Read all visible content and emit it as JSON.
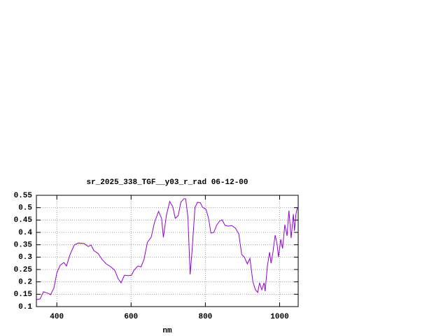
{
  "chart_data": {
    "type": "line",
    "title": "sr_2025_338_TGF__y03_r_rad 06-12-00",
    "x_label": "nm",
    "color": "#9400d3",
    "grid": true,
    "xlim": [
      345,
      1050
    ],
    "ylim": [
      0.1,
      0.55
    ],
    "xticks": [
      400,
      600,
      800,
      1000
    ],
    "yticks": [
      0.1,
      0.15,
      0.2,
      0.25,
      0.3,
      0.35,
      0.4,
      0.45,
      0.5,
      0.55
    ],
    "x": [
      345,
      355,
      364,
      376,
      383,
      392,
      400,
      409,
      419,
      426,
      436,
      447,
      458,
      473,
      485,
      492,
      500,
      511,
      522,
      533,
      545,
      556,
      565,
      573,
      582,
      592,
      601,
      608,
      618,
      627,
      635,
      644,
      654,
      663,
      674,
      682,
      687,
      695,
      704,
      712,
      719,
      727,
      734,
      742,
      747,
      753,
      759,
      764,
      772,
      779,
      787,
      792,
      802,
      809,
      815,
      823,
      830,
      838,
      845,
      853,
      862,
      871,
      881,
      890,
      898,
      905,
      913,
      920,
      928,
      935,
      941,
      946,
      952,
      958,
      961,
      967,
      973,
      977,
      982,
      988,
      993,
      997,
      1003,
      1008,
      1014,
      1020,
      1025,
      1031,
      1037,
      1040,
      1044,
      1048
    ],
    "values": [
      0.128,
      0.131,
      0.16,
      0.154,
      0.148,
      0.174,
      0.236,
      0.267,
      0.278,
      0.264,
      0.312,
      0.349,
      0.357,
      0.355,
      0.343,
      0.349,
      0.326,
      0.315,
      0.29,
      0.273,
      0.261,
      0.247,
      0.213,
      0.196,
      0.227,
      0.225,
      0.227,
      0.247,
      0.264,
      0.261,
      0.292,
      0.36,
      0.38,
      0.44,
      0.485,
      0.457,
      0.38,
      0.468,
      0.525,
      0.505,
      0.457,
      0.468,
      0.522,
      0.536,
      0.536,
      0.463,
      0.23,
      0.32,
      0.5,
      0.522,
      0.519,
      0.502,
      0.493,
      0.454,
      0.397,
      0.4,
      0.428,
      0.445,
      0.451,
      0.428,
      0.425,
      0.428,
      0.417,
      0.394,
      0.31,
      0.3,
      0.273,
      0.295,
      0.2,
      0.168,
      0.157,
      0.196,
      0.168,
      0.196,
      0.162,
      0.264,
      0.32,
      0.275,
      0.32,
      0.389,
      0.355,
      0.3,
      0.372,
      0.335,
      0.431,
      0.386,
      0.488,
      0.377,
      0.474,
      0.406,
      0.474,
      0.502
    ]
  }
}
